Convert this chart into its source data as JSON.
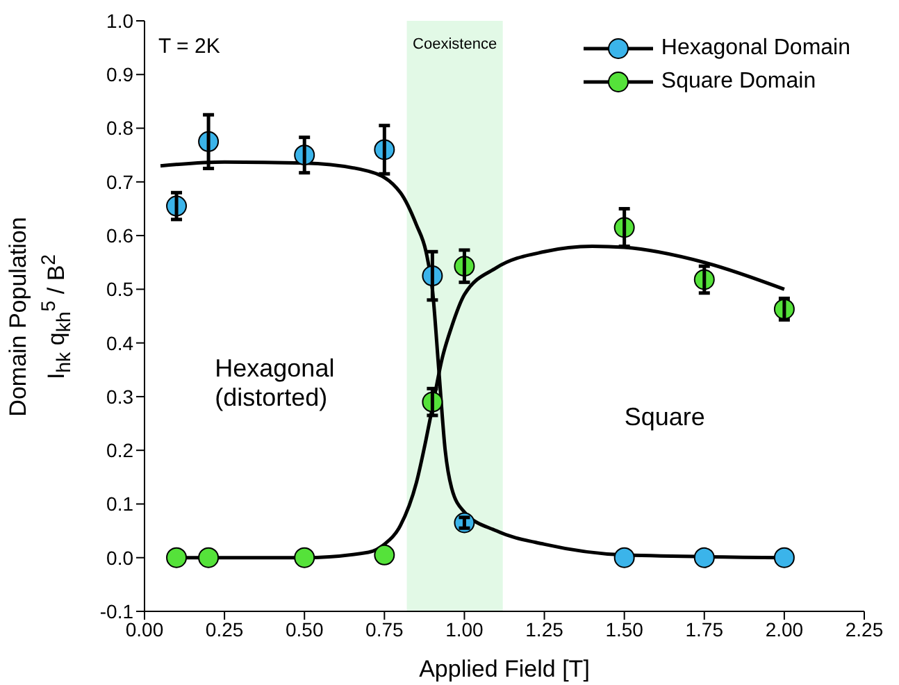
{
  "chart_data": {
    "type": "scatter",
    "xlabel": "Applied Field [T]",
    "ylabel": "Domain Population\nI$_{hk}$ q$_{kh}$$^{5}$ / B$^{2}$",
    "xlim": [
      0,
      2.25
    ],
    "ylim": [
      -0.1,
      1.0
    ],
    "xticks": [
      {
        "value": 0,
        "label": "0.00"
      },
      {
        "value": 0.25,
        "label": "0.25"
      },
      {
        "value": 0.5,
        "label": "0.50"
      },
      {
        "value": 0.75,
        "label": "0.75"
      },
      {
        "value": 1,
        "label": "1.00"
      },
      {
        "value": 1.25,
        "label": "1.25"
      },
      {
        "value": 1.5,
        "label": "1.50"
      },
      {
        "value": 1.75,
        "label": "1.75"
      },
      {
        "value": 2,
        "label": "2.00"
      },
      {
        "value": 2.25,
        "label": "2.25"
      }
    ],
    "yticks": [
      -0.1,
      {
        "value": 0,
        "label": "0.0"
      },
      0.1,
      0.2,
      0.3,
      0.4,
      0.5,
      0.6,
      0.7,
      0.8,
      0.9,
      {
        "value": 1,
        "label": "1.0"
      }
    ],
    "grid": false,
    "legend": "top right",
    "bands": [
      {
        "axis": "x",
        "from": 0.82,
        "to": 1.12,
        "label": "Coexistence",
        "color": "#e2f9e6"
      }
    ],
    "annotations": [
      "T = 2K",
      "Hexagonal (distorted)",
      "Square"
    ],
    "series": [
      {
        "type": "line",
        "marker": "none",
        "color": "#000000",
        "x": [
          0.05,
          0.25,
          0.5,
          0.7,
          0.8,
          0.85,
          0.88,
          0.9,
          0.92,
          0.94,
          0.96,
          1.0,
          1.1,
          1.25,
          1.5,
          2.0
        ],
        "values": [
          0.73,
          0.737,
          0.735,
          0.72,
          0.68,
          0.62,
          0.57,
          0.5,
          0.35,
          0.2,
          0.13,
          0.085,
          0.05,
          0.025,
          0.005,
          0.0
        ]
      },
      {
        "type": "line",
        "marker": "none",
        "color": "#000000",
        "x": [
          0.1,
          0.3,
          0.5,
          0.7,
          0.75,
          0.8,
          0.85,
          0.88,
          0.9,
          0.93,
          0.96,
          1.0,
          1.1,
          1.25,
          1.4,
          1.5,
          1.75,
          2.0
        ],
        "values": [
          0.0,
          0.0,
          0.0,
          0.01,
          0.025,
          0.06,
          0.14,
          0.22,
          0.28,
          0.37,
          0.43,
          0.49,
          0.54,
          0.57,
          0.58,
          0.578,
          0.55,
          0.5
        ]
      },
      {
        "marker": "circle",
        "name": "Hexagonal Domain",
        "color": "#3bb4ea",
        "x": [
          0.1,
          0.2,
          0.5,
          0.75,
          0.9,
          1.0,
          1.5,
          1.75,
          2.0
        ],
        "values": [
          0.655,
          0.775,
          0.75,
          0.76,
          0.525,
          0.065,
          0.0,
          0.0,
          0.0
        ],
        "errors": [
          0.025,
          0.05,
          0.033,
          0.045,
          0.045,
          0.01,
          null,
          null,
          null
        ]
      },
      {
        "marker": "circle",
        "name": "Square Domain",
        "color": "#55e23a",
        "x": [
          0.1,
          0.2,
          0.5,
          0.75,
          0.9,
          1.0,
          1.5,
          1.75,
          2.0
        ],
        "values": [
          0.0,
          0.0,
          0.0,
          0.005,
          0.29,
          0.543,
          0.615,
          0.518,
          0.463
        ],
        "errors": [
          null,
          null,
          null,
          null,
          0.025,
          0.03,
          0.035,
          0.025,
          0.02
        ]
      }
    ]
  }
}
